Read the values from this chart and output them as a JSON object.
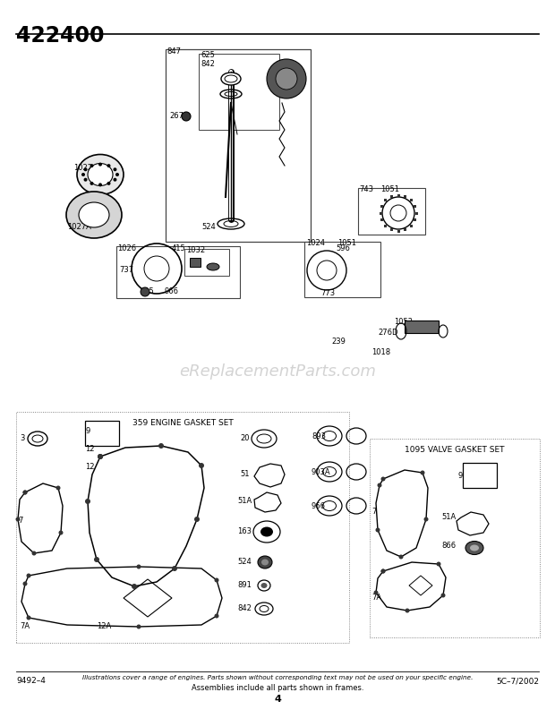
{
  "page_title": "422400",
  "bg_color": "#ffffff",
  "footer_left": "9492–4",
  "footer_center_line1": "Illustrations cover a range of engines. Parts shown without corresponding text may not be used on your specific engine.",
  "footer_center_line2": "Assemblies include all parts shown in frames.",
  "footer_page": "4",
  "footer_right": "5C–7/2002",
  "watermark": "eReplacementParts.com"
}
